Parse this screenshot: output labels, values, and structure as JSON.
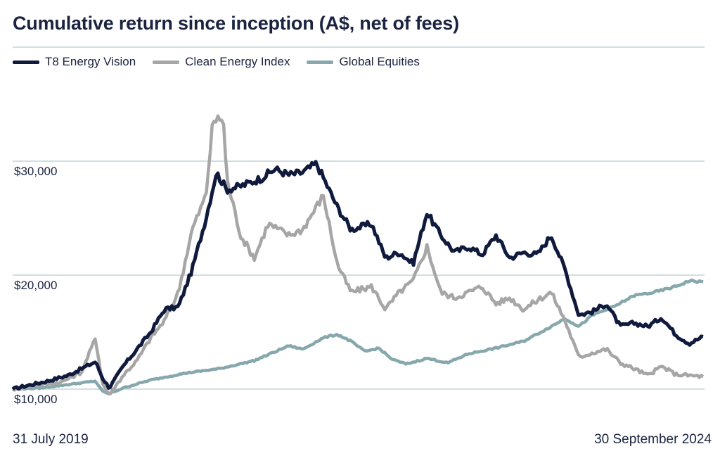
{
  "chart_data": {
    "type": "line",
    "title": "Cumulative return since inception (A$, net of fees)",
    "x_start_label": "31 July 2019",
    "x_end_label": "30 September 2024",
    "yticks": [
      {
        "value": 10000,
        "label": "$10,000"
      },
      {
        "value": 20000,
        "label": "$20,000"
      },
      {
        "value": 30000,
        "label": "$30,000"
      }
    ],
    "ylim": [
      9000,
      35000
    ],
    "grid": true,
    "legend_position": "top-left",
    "series": [
      {
        "name": "T8 Energy Vision",
        "color": "#0f1a3c",
        "points": [
          [
            0,
            10000
          ],
          [
            0.02,
            10300
          ],
          [
            0.05,
            10700
          ],
          [
            0.08,
            11200
          ],
          [
            0.1,
            11800
          ],
          [
            0.12,
            12400
          ],
          [
            0.13,
            11000
          ],
          [
            0.14,
            10100
          ],
          [
            0.16,
            12000
          ],
          [
            0.18,
            13500
          ],
          [
            0.2,
            15000
          ],
          [
            0.22,
            17000
          ],
          [
            0.24,
            17200
          ],
          [
            0.26,
            20500
          ],
          [
            0.28,
            25000
          ],
          [
            0.295,
            29000
          ],
          [
            0.31,
            27500
          ],
          [
            0.33,
            27800
          ],
          [
            0.36,
            28500
          ],
          [
            0.38,
            29300
          ],
          [
            0.4,
            28800
          ],
          [
            0.42,
            29000
          ],
          [
            0.44,
            29800
          ],
          [
            0.47,
            26000
          ],
          [
            0.49,
            24000
          ],
          [
            0.52,
            24500
          ],
          [
            0.54,
            21500
          ],
          [
            0.56,
            22000
          ],
          [
            0.58,
            21000
          ],
          [
            0.6,
            25500
          ],
          [
            0.62,
            23500
          ],
          [
            0.64,
            22000
          ],
          [
            0.66,
            22500
          ],
          [
            0.68,
            21800
          ],
          [
            0.7,
            23500
          ],
          [
            0.72,
            21500
          ],
          [
            0.74,
            22000
          ],
          [
            0.76,
            21800
          ],
          [
            0.78,
            23500
          ],
          [
            0.8,
            20500
          ],
          [
            0.82,
            16500
          ],
          [
            0.84,
            16800
          ],
          [
            0.86,
            17500
          ],
          [
            0.88,
            15500
          ],
          [
            0.9,
            15800
          ],
          [
            0.92,
            15500
          ],
          [
            0.94,
            16300
          ],
          [
            0.96,
            14800
          ],
          [
            0.98,
            14000
          ],
          [
            1.0,
            14600
          ]
        ]
      },
      {
        "name": "Clean Energy Index",
        "color": "#a6a6a6",
        "points": [
          [
            0,
            10000
          ],
          [
            0.03,
            10300
          ],
          [
            0.07,
            10600
          ],
          [
            0.1,
            11500
          ],
          [
            0.12,
            14500
          ],
          [
            0.13,
            10500
          ],
          [
            0.14,
            9500
          ],
          [
            0.16,
            11200
          ],
          [
            0.18,
            12500
          ],
          [
            0.2,
            14500
          ],
          [
            0.22,
            16000
          ],
          [
            0.24,
            18500
          ],
          [
            0.26,
            24000
          ],
          [
            0.28,
            27000
          ],
          [
            0.29,
            33500
          ],
          [
            0.305,
            33800
          ],
          [
            0.31,
            28500
          ],
          [
            0.33,
            23500
          ],
          [
            0.35,
            21500
          ],
          [
            0.37,
            24500
          ],
          [
            0.4,
            23500
          ],
          [
            0.42,
            24000
          ],
          [
            0.45,
            27000
          ],
          [
            0.47,
            21000
          ],
          [
            0.49,
            18500
          ],
          [
            0.52,
            19000
          ],
          [
            0.54,
            17000
          ],
          [
            0.56,
            18500
          ],
          [
            0.58,
            19500
          ],
          [
            0.6,
            22500
          ],
          [
            0.62,
            18500
          ],
          [
            0.64,
            18000
          ],
          [
            0.66,
            18500
          ],
          [
            0.68,
            19000
          ],
          [
            0.7,
            17500
          ],
          [
            0.72,
            18000
          ],
          [
            0.74,
            17000
          ],
          [
            0.76,
            17800
          ],
          [
            0.78,
            18500
          ],
          [
            0.8,
            16000
          ],
          [
            0.82,
            12800
          ],
          [
            0.84,
            13200
          ],
          [
            0.86,
            13500
          ],
          [
            0.88,
            12300
          ],
          [
            0.9,
            11800
          ],
          [
            0.92,
            11200
          ],
          [
            0.94,
            12000
          ],
          [
            0.96,
            11300
          ],
          [
            0.98,
            11200
          ],
          [
            1.0,
            11100
          ]
        ]
      },
      {
        "name": "Global Equities",
        "color": "#86a8ac",
        "points": [
          [
            0,
            10000
          ],
          [
            0.04,
            10100
          ],
          [
            0.08,
            10400
          ],
          [
            0.12,
            10700
          ],
          [
            0.13,
            9800
          ],
          [
            0.14,
            9600
          ],
          [
            0.16,
            10100
          ],
          [
            0.2,
            10800
          ],
          [
            0.25,
            11400
          ],
          [
            0.3,
            11800
          ],
          [
            0.35,
            12500
          ],
          [
            0.4,
            13800
          ],
          [
            0.42,
            13500
          ],
          [
            0.45,
            14500
          ],
          [
            0.47,
            14800
          ],
          [
            0.49,
            14200
          ],
          [
            0.51,
            13300
          ],
          [
            0.53,
            13600
          ],
          [
            0.55,
            12600
          ],
          [
            0.57,
            12200
          ],
          [
            0.6,
            12700
          ],
          [
            0.63,
            12300
          ],
          [
            0.66,
            13100
          ],
          [
            0.7,
            13600
          ],
          [
            0.74,
            14200
          ],
          [
            0.78,
            15500
          ],
          [
            0.8,
            16200
          ],
          [
            0.82,
            15500
          ],
          [
            0.84,
            16500
          ],
          [
            0.87,
            17200
          ],
          [
            0.9,
            18200
          ],
          [
            0.93,
            18500
          ],
          [
            0.96,
            19000
          ],
          [
            0.98,
            19500
          ],
          [
            1.0,
            19400
          ]
        ]
      }
    ]
  }
}
